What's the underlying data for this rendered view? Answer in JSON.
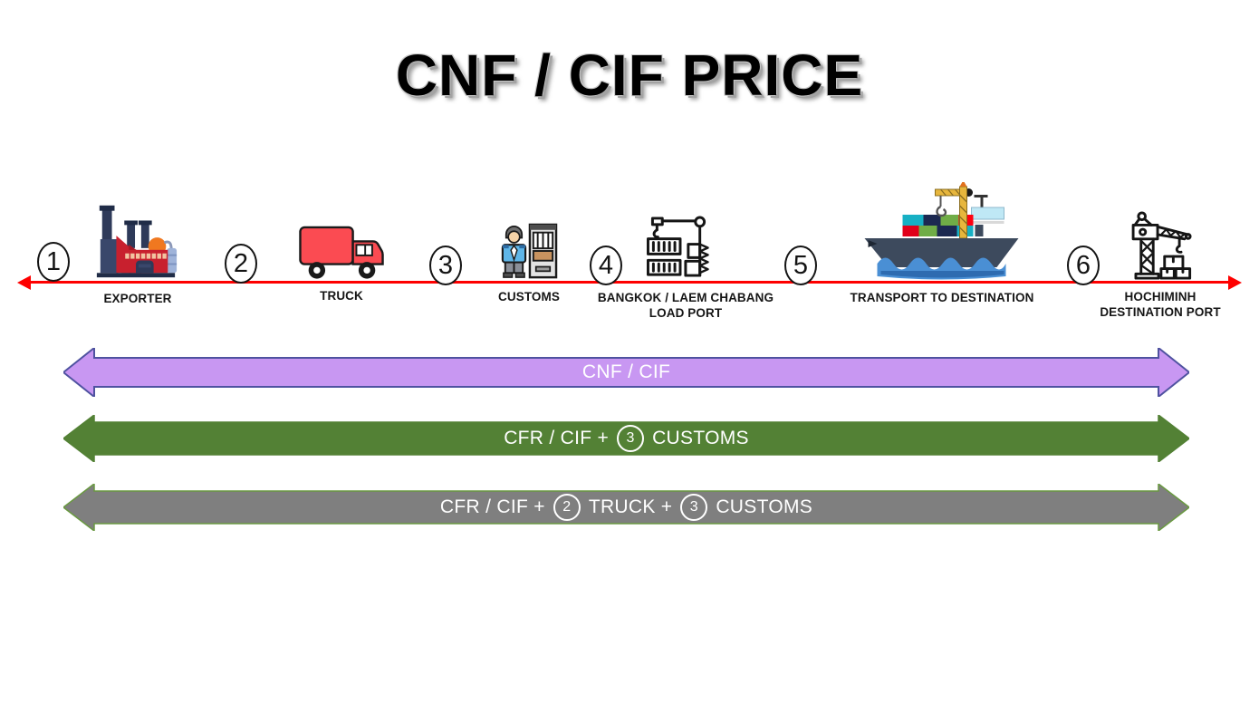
{
  "title": "CNF / CIF PRICE",
  "timeline": {
    "line_color": "#fe0000",
    "steps": [
      {
        "number": "1",
        "icon": "factory-icon",
        "line1": "EXPORTER",
        "line2": ""
      },
      {
        "number": "2",
        "icon": "truck-icon",
        "line1": "TRUCK",
        "line2": ""
      },
      {
        "number": "3",
        "icon": "customs-officer-icon",
        "line1": "CUSTOMS",
        "line2": ""
      },
      {
        "number": "4",
        "icon": "port-crane-containers-icon",
        "line1": "BANGKOK / LAEM CHABANG",
        "line2": "LOAD PORT"
      },
      {
        "number": "5",
        "icon": "cargo-ship-icon",
        "line1": "TRANSPORT TO DESTINATION",
        "line2": ""
      },
      {
        "number": "6",
        "icon": "tower-crane-boxes-icon",
        "line1": "HOCHIMINH",
        "line2": "DESTINATION PORT"
      }
    ]
  },
  "arrows": [
    {
      "name": "cnf-cif-arrow",
      "fill": "#c897f2",
      "border": "#4f52a0",
      "text_color": "#ffffff",
      "parts": [
        {
          "text": "CNF / CIF"
        }
      ]
    },
    {
      "name": "cfr-customs-arrow",
      "fill": "#538135",
      "border": "#538135",
      "text_color": "#ffffff",
      "parts": [
        {
          "text": "CFR / CIF +"
        },
        {
          "circle": "3"
        },
        {
          "text": "CUSTOMS"
        }
      ]
    },
    {
      "name": "cfr-truck-customs-arrow",
      "fill": "#7f7f7f",
      "border": "#6a9942",
      "text_color": "#ffffff",
      "parts": [
        {
          "text": "CFR / CIF +"
        },
        {
          "circle": "2"
        },
        {
          "text": "TRUCK +"
        },
        {
          "circle": "3"
        },
        {
          "text": "CUSTOMS"
        }
      ]
    }
  ]
}
